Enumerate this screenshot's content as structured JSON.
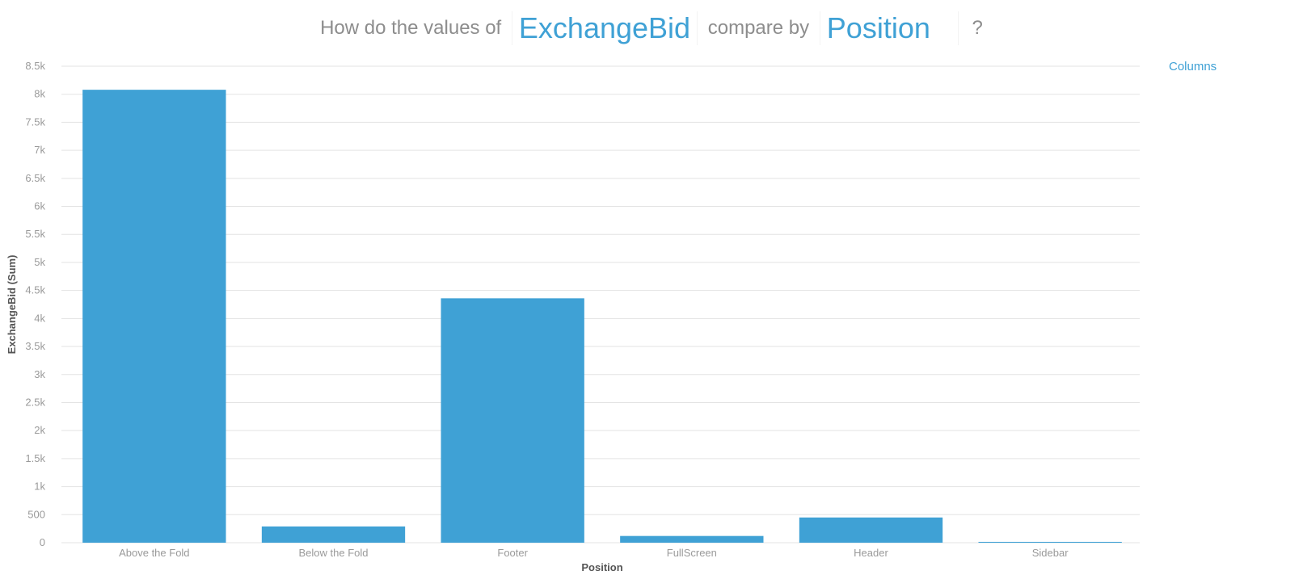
{
  "question": {
    "prefix": "How do the values of",
    "measure": "ExchangeBid",
    "middle": "compare by",
    "dimension": "Position",
    "suffix": "?"
  },
  "chart_type_label": "Columns",
  "colors": {
    "accent": "#3fa1d5",
    "bar": "#3fa1d5",
    "grid": "#e3e3e3",
    "muted": "#8d8d8d"
  },
  "chart_data": {
    "type": "bar",
    "categories": [
      "Above the Fold",
      "Below the Fold",
      "Footer",
      "FullScreen",
      "Header",
      "Sidebar"
    ],
    "values": [
      8080,
      290,
      4360,
      120,
      450,
      15
    ],
    "xlabel": "Position",
    "ylabel": "ExchangeBid (Sum)",
    "ylim": [
      0,
      8500
    ],
    "yticks": [
      0,
      500,
      1000,
      1500,
      2000,
      2500,
      3000,
      3500,
      4000,
      4500,
      5000,
      5500,
      6000,
      6500,
      7000,
      7500,
      8000,
      8500
    ],
    "ytick_labels": [
      "0",
      "500",
      "1k",
      "1.5k",
      "2k",
      "2.5k",
      "3k",
      "3.5k",
      "4k",
      "4.5k",
      "5k",
      "5.5k",
      "6k",
      "6.5k",
      "7k",
      "7.5k",
      "8k",
      "8.5k"
    ],
    "grid": true,
    "legend": "none"
  }
}
